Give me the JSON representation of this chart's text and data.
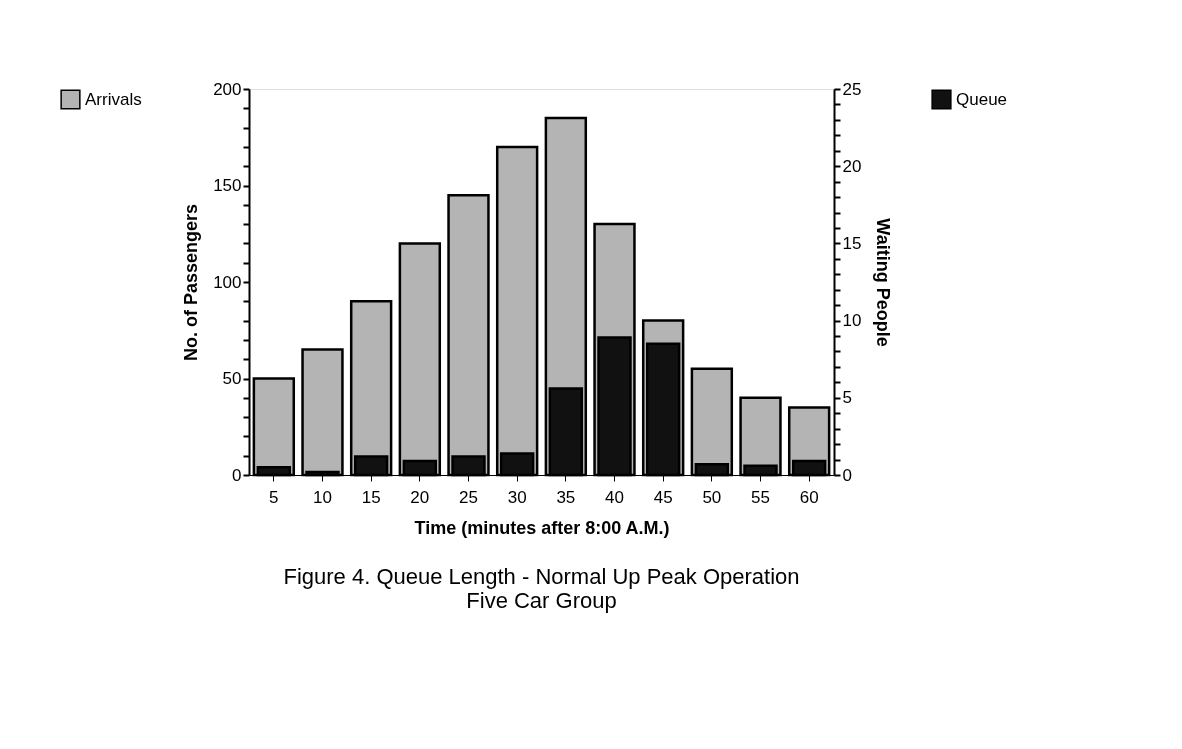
{
  "chart_data": {
    "type": "bar",
    "xlabel": "Time (minutes after 8:00 A.M.)",
    "ylabel": "No. of Passengers",
    "y2label": "Waiting People",
    "categories": [
      "5",
      "10",
      "15",
      "20",
      "25",
      "30",
      "35",
      "40",
      "45",
      "50",
      "55",
      "60"
    ],
    "series": [
      {
        "name": "Arrivals",
        "color": "#b4b4b4",
        "values": [
          50,
          65,
          90,
          120,
          145,
          170,
          185,
          130,
          80,
          55,
          40,
          35
        ]
      },
      {
        "name": "Queue",
        "color": "#111111",
        "axis": "y2",
        "values": [
          0.5,
          0.2,
          1.2,
          0.9,
          1.2,
          1.4,
          5.6,
          8.9,
          8.5,
          0.7,
          0.6,
          0.9
        ]
      }
    ],
    "ylim": [
      0,
      200
    ],
    "yticks": [
      0,
      {
        "value": 10,
        "label": null
      },
      {
        "value": 20,
        "label": null
      },
      {
        "value": 30,
        "label": null
      },
      {
        "value": 40,
        "label": null
      },
      50,
      {
        "value": 60,
        "label": null
      },
      {
        "value": 70,
        "label": null
      },
      {
        "value": 80,
        "label": null
      },
      {
        "value": 90,
        "label": null
      },
      100,
      {
        "value": 110,
        "label": null
      },
      {
        "value": 120,
        "label": null
      },
      {
        "value": 130,
        "label": null
      },
      {
        "value": 140,
        "label": null
      },
      150,
      {
        "value": 160,
        "label": null
      },
      {
        "value": 170,
        "label": null
      },
      {
        "value": 180,
        "label": null
      },
      {
        "value": 190,
        "label": null
      },
      200
    ],
    "y2lim": [
      0,
      25
    ],
    "y2ticks": [
      0,
      {
        "value": 1,
        "label": null
      },
      {
        "value": 2,
        "label": null
      },
      {
        "value": 3,
        "label": null
      },
      {
        "value": 4,
        "label": null
      },
      5,
      {
        "value": 6,
        "label": null
      },
      {
        "value": 7,
        "label": null
      },
      {
        "value": 8,
        "label": null
      },
      {
        "value": 9,
        "label": null
      },
      10,
      {
        "value": 11,
        "label": null
      },
      {
        "value": 12,
        "label": null
      },
      {
        "value": 13,
        "label": null
      },
      {
        "value": 14,
        "label": null
      },
      15,
      {
        "value": 16,
        "label": null
      },
      {
        "value": 17,
        "label": null
      },
      {
        "value": 18,
        "label": null
      },
      {
        "value": 19,
        "label": null
      },
      20,
      {
        "value": 21,
        "label": null
      },
      {
        "value": 22,
        "label": null
      },
      {
        "value": 23,
        "label": null
      },
      {
        "value": 24,
        "label": null
      },
      25
    ],
    "grid": false,
    "legend": "left",
    "annotations": [
      "Figure 4. Queue Length - Normal Up Peak Operation",
      "Five Car Group"
    ]
  }
}
